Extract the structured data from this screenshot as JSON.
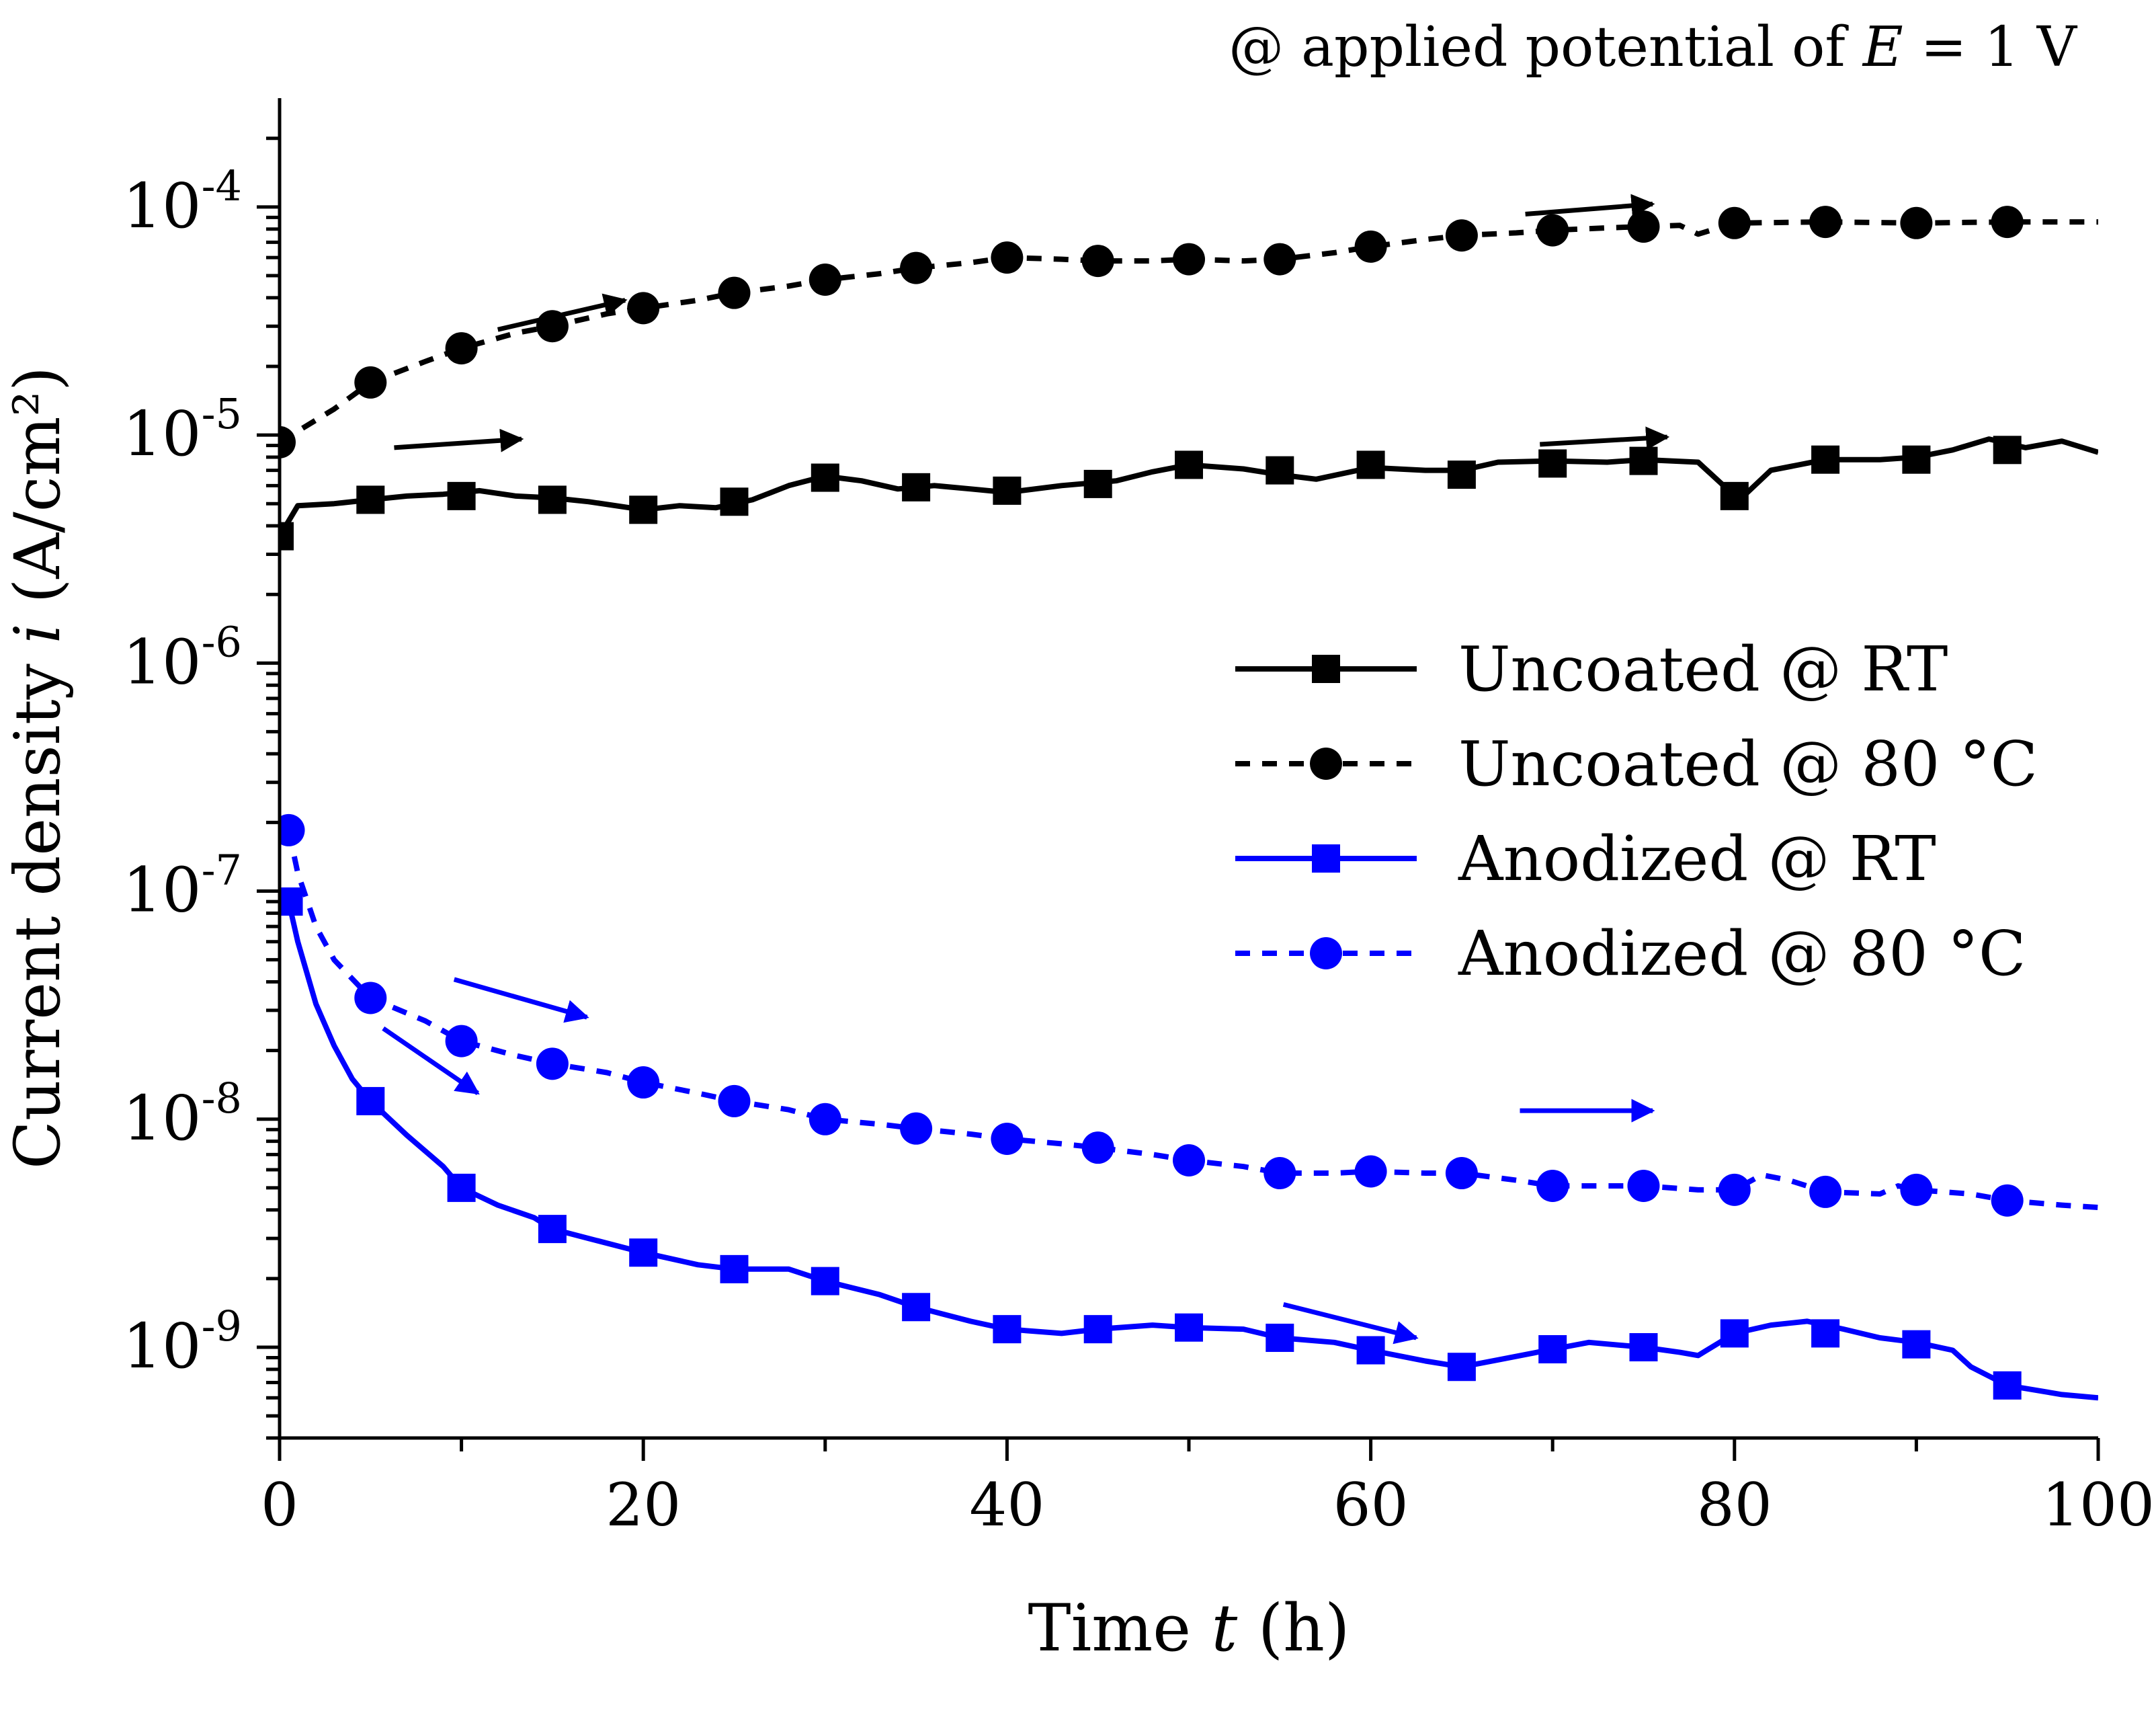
{
  "chart_data": {
    "type": "line",
    "title": "",
    "annotation": "@ applied potential of E = 1 V",
    "annotation_parts": {
      "prefix": "@ applied potential of ",
      "variable": "E",
      "suffix": " = 1 V"
    },
    "xlabel": "Time t (h)",
    "xlabel_parts": {
      "prefix": "Time ",
      "variable": "t",
      "suffix": " (h)"
    },
    "ylabel": "Current density i (A/cm²)",
    "ylabel_parts": {
      "prefix": "Current density ",
      "variable": "i",
      "suffix": " (A/cm²)"
    },
    "xlim": [
      0,
      100
    ],
    "ylim": [
      4e-10,
      0.0003
    ],
    "yscale": "log",
    "x_ticks": [
      0,
      20,
      40,
      60,
      80,
      100
    ],
    "x_tick_labels": [
      "0",
      "20",
      "40",
      "60",
      "80",
      "100"
    ],
    "y_ticks": [
      1e-09,
      1e-08,
      1e-07,
      1e-06,
      1e-05,
      0.0001
    ],
    "y_tick_labels": [
      {
        "base": "10",
        "exp": "-9"
      },
      {
        "base": "10",
        "exp": "-8"
      },
      {
        "base": "10",
        "exp": "-7"
      },
      {
        "base": "10",
        "exp": "-6"
      },
      {
        "base": "10",
        "exp": "-5"
      },
      {
        "base": "10",
        "exp": "-4"
      }
    ],
    "grid": false,
    "legend_position": "right-middle",
    "series": [
      {
        "name": "Uncoated @ RT",
        "color": "#000000",
        "line_style": "solid",
        "marker": "square",
        "line": [
          [
            0,
            3.6e-06
          ],
          [
            1,
            4.9e-06
          ],
          [
            3,
            5e-06
          ],
          [
            5,
            5.2e-06
          ],
          [
            7,
            5.4e-06
          ],
          [
            9,
            5.5e-06
          ],
          [
            11,
            5.7e-06
          ],
          [
            13,
            5.4e-06
          ],
          [
            15,
            5.3e-06
          ],
          [
            17,
            5.1e-06
          ],
          [
            20,
            4.7e-06
          ],
          [
            22,
            4.9e-06
          ],
          [
            24,
            4.8e-06
          ],
          [
            26,
            5.2e-06
          ],
          [
            28,
            6e-06
          ],
          [
            30,
            6.6e-06
          ],
          [
            32,
            6.3e-06
          ],
          [
            34,
            5.8e-06
          ],
          [
            36,
            6e-06
          ],
          [
            38,
            5.8e-06
          ],
          [
            40,
            5.6e-06
          ],
          [
            43,
            6e-06
          ],
          [
            46,
            6.3e-06
          ],
          [
            48,
            6.9e-06
          ],
          [
            50,
            7.4e-06
          ],
          [
            53,
            7.1e-06
          ],
          [
            55,
            6.7e-06
          ],
          [
            57,
            6.4e-06
          ],
          [
            60,
            7.2e-06
          ],
          [
            63,
            7e-06
          ],
          [
            65,
            7e-06
          ],
          [
            67,
            7.6e-06
          ],
          [
            70,
            7.7e-06
          ],
          [
            73,
            7.6e-06
          ],
          [
            75,
            7.8e-06
          ],
          [
            78,
            7.6e-06
          ],
          [
            79.5,
            5.9e-06
          ],
          [
            80.5,
            5.4e-06
          ],
          [
            82,
            7e-06
          ],
          [
            85,
            7.8e-06
          ],
          [
            88,
            7.8e-06
          ],
          [
            90,
            8e-06
          ],
          [
            92,
            8.6e-06
          ],
          [
            94,
            9.6e-06
          ],
          [
            96,
            8.8e-06
          ],
          [
            98,
            9.4e-06
          ],
          [
            100,
            8.4e-06
          ]
        ],
        "x": [
          0,
          5,
          10,
          15,
          20,
          25,
          30,
          35,
          40,
          45,
          50,
          55,
          60,
          65,
          70,
          75,
          80,
          85,
          90,
          95
        ],
        "y": [
          3.6e-06,
          5.2e-06,
          5.4e-06,
          5.2e-06,
          4.7e-06,
          5.1e-06,
          6.5e-06,
          5.9e-06,
          5.7e-06,
          6.1e-06,
          7.4e-06,
          7e-06,
          7.4e-06,
          6.7e-06,
          7.5e-06,
          7.7e-06,
          5.4e-06,
          7.8e-06,
          7.8e-06,
          8.6e-06
        ]
      },
      {
        "name": "Uncoated @ 80 °C",
        "color": "#000000",
        "line_style": "dashed",
        "marker": "circle",
        "line": [
          [
            0,
            9.3e-06
          ],
          [
            3,
            1.3e-05
          ],
          [
            5,
            1.7e-05
          ],
          [
            8,
            2.1e-05
          ],
          [
            10,
            2.4e-05
          ],
          [
            13,
            2.8e-05
          ],
          [
            15,
            3e-05
          ],
          [
            18,
            3.4e-05
          ],
          [
            20,
            3.6e-05
          ],
          [
            23,
            3.9e-05
          ],
          [
            25,
            4.2e-05
          ],
          [
            28,
            4.5e-05
          ],
          [
            30,
            4.8e-05
          ],
          [
            33,
            5.1e-05
          ],
          [
            35,
            5.4e-05
          ],
          [
            38,
            5.7e-05
          ],
          [
            40,
            6e-05
          ],
          [
            43,
            5.9e-05
          ],
          [
            45,
            5.8e-05
          ],
          [
            48,
            5.8e-05
          ],
          [
            50,
            5.9e-05
          ],
          [
            53,
            5.8e-05
          ],
          [
            55,
            5.9e-05
          ],
          [
            58,
            6.3e-05
          ],
          [
            60,
            6.7e-05
          ],
          [
            63,
            7.2e-05
          ],
          [
            65,
            7.5e-05
          ],
          [
            68,
            7.7e-05
          ],
          [
            70,
            7.9e-05
          ],
          [
            73,
            8.1e-05
          ],
          [
            75,
            8.2e-05
          ],
          [
            77,
            8.3e-05
          ],
          [
            78,
            7.6e-05
          ],
          [
            80,
            8.5e-05
          ],
          [
            85,
            8.6e-05
          ],
          [
            90,
            8.5e-05
          ],
          [
            95,
            8.6e-05
          ],
          [
            100,
            8.6e-05
          ]
        ],
        "x": [
          0,
          5,
          10,
          15,
          20,
          25,
          30,
          35,
          40,
          45,
          50,
          55,
          60,
          65,
          70,
          75,
          80,
          85,
          90,
          95
        ],
        "y": [
          9.3e-06,
          1.7e-05,
          2.4e-05,
          3e-05,
          3.6e-05,
          4.2e-05,
          4.8e-05,
          5.4e-05,
          6e-05,
          5.8e-05,
          5.9e-05,
          5.9e-05,
          6.7e-05,
          7.5e-05,
          7.9e-05,
          8.2e-05,
          8.5e-05,
          8.6e-05,
          8.5e-05,
          8.6e-05
        ]
      },
      {
        "name": "Anodized @ RT",
        "color": "#0000ff",
        "line_style": "solid",
        "marker": "square",
        "line": [
          [
            0.5,
            9e-08
          ],
          [
            1,
            6e-08
          ],
          [
            2,
            3.2e-08
          ],
          [
            3,
            2.1e-08
          ],
          [
            4,
            1.5e-08
          ],
          [
            5,
            1.2e-08
          ],
          [
            7,
            8.5e-09
          ],
          [
            9,
            6.2e-09
          ],
          [
            10,
            5e-09
          ],
          [
            12,
            4.2e-09
          ],
          [
            14,
            3.7e-09
          ],
          [
            15,
            3.3e-09
          ],
          [
            17,
            3e-09
          ],
          [
            20,
            2.6e-09
          ],
          [
            23,
            2.3e-09
          ],
          [
            25,
            2.2e-09
          ],
          [
            28,
            2.2e-09
          ],
          [
            30,
            1.95e-09
          ],
          [
            33,
            1.7e-09
          ],
          [
            35,
            1.5e-09
          ],
          [
            38,
            1.3e-09
          ],
          [
            40,
            1.2e-09
          ],
          [
            43,
            1.15e-09
          ],
          [
            45,
            1.2e-09
          ],
          [
            48,
            1.25e-09
          ],
          [
            50,
            1.22e-09
          ],
          [
            53,
            1.2e-09
          ],
          [
            55,
            1.1e-09
          ],
          [
            58,
            1.05e-09
          ],
          [
            60,
            9.7e-10
          ],
          [
            63,
            8.7e-10
          ],
          [
            65,
            8.2e-10
          ],
          [
            67,
            8.8e-10
          ],
          [
            70,
            9.8e-10
          ],
          [
            72,
            1.05e-09
          ],
          [
            75,
            1e-09
          ],
          [
            77,
            9.5e-10
          ],
          [
            78,
            9.2e-10
          ],
          [
            80,
            1.15e-09
          ],
          [
            82,
            1.25e-09
          ],
          [
            84,
            1.3e-09
          ],
          [
            86,
            1.2e-09
          ],
          [
            88,
            1.1e-09
          ],
          [
            90,
            1.05e-09
          ],
          [
            92,
            9.7e-10
          ],
          [
            93,
            8.2e-10
          ],
          [
            95,
            6.8e-10
          ],
          [
            98,
            6.2e-10
          ],
          [
            100,
            6e-10
          ]
        ],
        "x": [
          0.5,
          5,
          10,
          15,
          20,
          25,
          30,
          35,
          40,
          45,
          50,
          55,
          60,
          65,
          70,
          75,
          80,
          85,
          90,
          95
        ],
        "y": [
          9e-08,
          1.2e-08,
          5e-09,
          3.3e-09,
          2.6e-09,
          2.2e-09,
          1.95e-09,
          1.5e-09,
          1.2e-09,
          1.2e-09,
          1.22e-09,
          1.1e-09,
          9.7e-10,
          8.2e-10,
          9.8e-10,
          1e-09,
          1.15e-09,
          1.15e-09,
          1.03e-09,
          6.8e-10
        ]
      },
      {
        "name": "Anodized @ 80 °C",
        "color": "#0000ff",
        "line_style": "dashed",
        "marker": "circle",
        "line": [
          [
            0.5,
            1.85e-07
          ],
          [
            1,
            1.2e-07
          ],
          [
            2,
            7e-08
          ],
          [
            3,
            5e-08
          ],
          [
            5,
            3.4e-08
          ],
          [
            8,
            2.7e-08
          ],
          [
            10,
            2.2e-08
          ],
          [
            13,
            1.9e-08
          ],
          [
            15,
            1.75e-08
          ],
          [
            18,
            1.6e-08
          ],
          [
            20,
            1.45e-08
          ],
          [
            23,
            1.3e-08
          ],
          [
            25,
            1.2e-08
          ],
          [
            28,
            1.1e-08
          ],
          [
            30,
            1e-08
          ],
          [
            33,
            9.5e-09
          ],
          [
            35,
            9.1e-09
          ],
          [
            38,
            8.6e-09
          ],
          [
            40,
            8.2e-09
          ],
          [
            43,
            7.8e-09
          ],
          [
            45,
            7.5e-09
          ],
          [
            48,
            7e-09
          ],
          [
            50,
            6.6e-09
          ],
          [
            53,
            6.2e-09
          ],
          [
            55,
            5.8e-09
          ],
          [
            58,
            5.8e-09
          ],
          [
            60,
            5.9e-09
          ],
          [
            63,
            5.8e-09
          ],
          [
            65,
            5.8e-09
          ],
          [
            68,
            5.4e-09
          ],
          [
            70,
            5.1e-09
          ],
          [
            73,
            5.1e-09
          ],
          [
            75,
            5.1e-09
          ],
          [
            78,
            4.9e-09
          ],
          [
            80,
            4.9e-09
          ],
          [
            81.5,
            5.7e-09
          ],
          [
            83,
            5.4e-09
          ],
          [
            85,
            4.8e-09
          ],
          [
            88,
            4.7e-09
          ],
          [
            89,
            5.1e-09
          ],
          [
            90,
            4.9e-09
          ],
          [
            93,
            4.7e-09
          ],
          [
            95,
            4.4e-09
          ],
          [
            98,
            4.2e-09
          ],
          [
            100,
            4.1e-09
          ]
        ],
        "x": [
          0.5,
          5,
          10,
          15,
          20,
          25,
          30,
          35,
          40,
          45,
          50,
          55,
          60,
          65,
          70,
          75,
          80,
          85,
          90,
          95
        ],
        "y": [
          1.85e-07,
          3.4e-08,
          2.2e-08,
          1.75e-08,
          1.45e-08,
          1.2e-08,
          1e-08,
          9.1e-09,
          8.2e-09,
          7.5e-09,
          6.6e-09,
          5.8e-09,
          5.9e-09,
          5.8e-09,
          5.1e-09,
          5.1e-09,
          4.9e-09,
          4.8e-09,
          4.9e-09,
          4.4e-09
        ]
      }
    ],
    "arrows": [
      {
        "series": "Uncoated @ 80 °C",
        "from": [
          12,
          2.9e-05
        ],
        "to": [
          19,
          3.9e-05
        ]
      },
      {
        "series": "Uncoated @ 80 °C",
        "from": [
          68.5,
          9.3e-05
        ],
        "to": [
          75.5,
          0.000103
        ]
      },
      {
        "series": "Uncoated @ RT",
        "from": [
          6.3,
          8.8e-06
        ],
        "to": [
          13.3,
          9.6e-06
        ]
      },
      {
        "series": "Uncoated @ RT",
        "from": [
          69.3,
          9.1e-06
        ],
        "to": [
          76.3,
          9.8e-06
        ]
      },
      {
        "series": "Anodized @ 80 °C",
        "from": [
          9.6,
          4.1e-08
        ],
        "to": [
          16.9,
          2.8e-08
        ]
      },
      {
        "series": "Anodized @ RT",
        "from": [
          5.7,
          2.5e-08
        ],
        "to": [
          10.9,
          1.3e-08
        ]
      },
      {
        "series": "Anodized @ 80 °C",
        "from": [
          68.2,
          1.09e-08
        ],
        "to": [
          75.5,
          1.09e-08
        ]
      },
      {
        "series": "Anodized @ RT",
        "from": [
          55.2,
          1.54e-09
        ],
        "to": [
          62.5,
          1.1e-09
        ]
      }
    ]
  }
}
